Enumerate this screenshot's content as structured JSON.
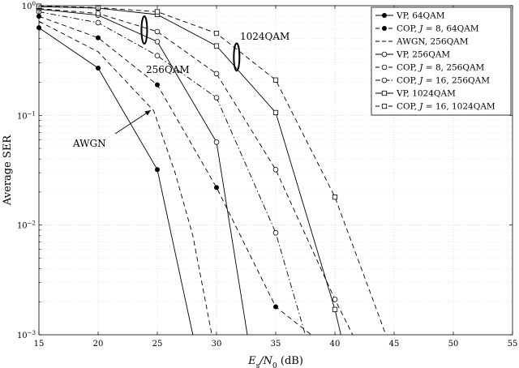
{
  "chart_data": {
    "type": "line",
    "title": "",
    "xlabel_main": "E",
    "xlabel_sub1": "s",
    "xlabel_mid": "/N",
    "xlabel_sub2": "0",
    "xlabel_tail": " (dB)",
    "ylabel": "Average SER",
    "xlim": [
      15,
      55
    ],
    "ylim": [
      0.001,
      1
    ],
    "yscale": "log",
    "grid": "dotted",
    "legend_position": "top-right",
    "x_ticks": [
      "15",
      "20",
      "25",
      "30",
      "35",
      "40",
      "45",
      "50",
      "55"
    ],
    "y_ticks": [
      {
        "value": 1,
        "base": "10",
        "exp": "0"
      },
      {
        "value": 0.1,
        "base": "10",
        "exp": "−1"
      },
      {
        "value": 0.01,
        "base": "10",
        "exp": "−2"
      },
      {
        "value": 0.001,
        "base": "10",
        "exp": "−3"
      }
    ],
    "annotations": [
      {
        "text": "1024QAM"
      },
      {
        "text": "256QAM"
      },
      {
        "text": "AWGN"
      }
    ],
    "series": [
      {
        "name": "VP, 64QAM",
        "style": "solid",
        "marker": "filled",
        "x": [
          15,
          20,
          25,
          28
        ],
        "y": [
          0.63,
          0.27,
          0.032,
          0.001
        ]
      },
      {
        "name": "COP, J = 8, 64QAM",
        "style": "dashed",
        "marker": "filled",
        "x": [
          15,
          20,
          25,
          30,
          35,
          38
        ],
        "y": [
          0.8,
          0.51,
          0.19,
          0.022,
          0.0018,
          0.001
        ]
      },
      {
        "name": "AWGN, 256QAM",
        "style": "dashed",
        "marker": "none",
        "x": [
          15,
          20,
          24.7,
          26.5,
          28,
          29.6
        ],
        "y": [
          0.72,
          0.38,
          0.11,
          0.03,
          0.008,
          0.001
        ]
      },
      {
        "name": "VP, 256QAM",
        "style": "solid",
        "marker": "open",
        "x": [
          15,
          20,
          25,
          30,
          32.6
        ],
        "y": [
          0.93,
          0.82,
          0.47,
          0.057,
          0.001
        ]
      },
      {
        "name": "COP, J = 8, 256QAM",
        "style": "dashed",
        "marker": "open",
        "x": [
          15,
          20,
          25,
          30,
          35,
          40,
          41.5
        ],
        "y": [
          0.94,
          0.85,
          0.58,
          0.24,
          0.032,
          0.0021,
          0.001
        ]
      },
      {
        "name": "COP, J = 16, 256QAM",
        "style": "dashdot",
        "marker": "open",
        "x": [
          15,
          20,
          25,
          30,
          35,
          37.5
        ],
        "y": [
          0.88,
          0.7,
          0.35,
          0.145,
          0.0085,
          0.001
        ]
      },
      {
        "name": "VP, 1024QAM",
        "style": "solid",
        "marker": "square",
        "x": [
          15,
          20,
          25,
          30,
          35,
          40,
          40.5
        ],
        "y": [
          0.98,
          0.95,
          0.83,
          0.43,
          0.106,
          0.0017,
          0.001
        ]
      },
      {
        "name": "COP, J = 16, 1024QAM",
        "style": "dashed",
        "marker": "square",
        "x": [
          15,
          20,
          25,
          30,
          35,
          40,
          44.3
        ],
        "y": [
          0.99,
          0.96,
          0.88,
          0.56,
          0.21,
          0.018,
          0.001
        ]
      }
    ],
    "legend_entries": [
      {
        "pre": "VP, 64QAM",
        "italic": "",
        "post": ""
      },
      {
        "pre": "COP, ",
        "italic": "J",
        "post": " = 8, 64QAM"
      },
      {
        "pre": "AWGN, 256QAM",
        "italic": "",
        "post": ""
      },
      {
        "pre": "VP, 256QAM",
        "italic": "",
        "post": ""
      },
      {
        "pre": "COP, ",
        "italic": "J",
        "post": " = 8, 256QAM"
      },
      {
        "pre": "COP, ",
        "italic": "J",
        "post": " = 16, 256QAM"
      },
      {
        "pre": "VP, 1024QAM",
        "italic": "",
        "post": ""
      },
      {
        "pre": "COP, ",
        "italic": "J",
        "post": " = 16, 1024QAM"
      }
    ]
  }
}
